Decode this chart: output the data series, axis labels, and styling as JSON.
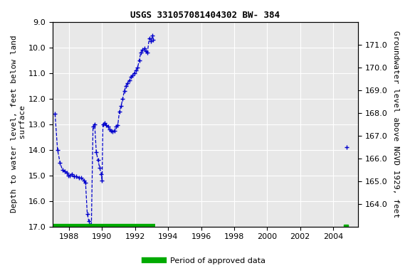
{
  "title": "USGS 331057081404302 BW- 384",
  "ylabel_left": "Depth to water level, feet below land\n surface",
  "ylabel_right": "Groundwater level above NGVD 1929, feet",
  "ylim_left": [
    9.0,
    17.0
  ],
  "ylim_right": [
    171.0,
    163.0
  ],
  "yticks_left": [
    9.0,
    10.0,
    11.0,
    12.0,
    13.0,
    14.0,
    15.0,
    16.0,
    17.0
  ],
  "yticks_right": [
    171.0,
    170.0,
    169.0,
    168.0,
    167.0,
    166.0,
    165.0,
    164.0
  ],
  "ytick_right_labels": [
    "171.0",
    "170.0",
    "169.0",
    "168.0",
    "167.0",
    "166.0",
    "165.0",
    "164.0"
  ],
  "xlim": [
    1987.0,
    2005.5
  ],
  "xticks": [
    1988,
    1990,
    1992,
    1994,
    1996,
    1998,
    2000,
    2002,
    2004
  ],
  "line_color": "#0000CC",
  "marker": "+",
  "marker_size": 5,
  "line_style": "--",
  "line_width": 0.9,
  "approved_color": "#00AA00",
  "background_color": "#e8e8e8",
  "grid_color": "#ffffff",
  "title_fontsize": 9,
  "axis_label_fontsize": 8,
  "tick_fontsize": 8,
  "main_data": [
    [
      1987.15,
      12.6
    ],
    [
      1987.3,
      14.0
    ],
    [
      1987.45,
      14.5
    ],
    [
      1987.6,
      14.8
    ],
    [
      1987.75,
      14.85
    ],
    [
      1987.85,
      14.9
    ],
    [
      1987.95,
      15.0
    ],
    [
      1988.05,
      15.0
    ],
    [
      1988.15,
      14.95
    ],
    [
      1988.3,
      15.05
    ],
    [
      1988.45,
      15.05
    ],
    [
      1988.6,
      15.1
    ],
    [
      1988.75,
      15.1
    ],
    [
      1988.9,
      15.2
    ],
    [
      1989.0,
      15.3
    ],
    [
      1989.1,
      16.5
    ],
    [
      1989.2,
      16.8
    ],
    [
      1989.3,
      16.95
    ],
    [
      1989.35,
      17.0
    ],
    [
      1989.45,
      13.1
    ],
    [
      1989.55,
      13.0
    ],
    [
      1989.65,
      14.1
    ],
    [
      1989.75,
      14.4
    ],
    [
      1989.85,
      14.7
    ],
    [
      1989.95,
      14.95
    ],
    [
      1990.0,
      15.2
    ],
    [
      1990.05,
      13.0
    ],
    [
      1990.15,
      12.95
    ],
    [
      1990.25,
      13.05
    ],
    [
      1990.35,
      13.1
    ],
    [
      1990.45,
      13.2
    ],
    [
      1990.55,
      13.25
    ],
    [
      1990.65,
      13.3
    ],
    [
      1990.75,
      13.25
    ],
    [
      1990.85,
      13.1
    ],
    [
      1990.95,
      13.05
    ],
    [
      1991.05,
      12.5
    ],
    [
      1991.15,
      12.3
    ],
    [
      1991.25,
      12.0
    ],
    [
      1991.35,
      11.7
    ],
    [
      1991.45,
      11.5
    ],
    [
      1991.55,
      11.4
    ],
    [
      1991.65,
      11.3
    ],
    [
      1991.75,
      11.15
    ],
    [
      1991.85,
      11.1
    ],
    [
      1991.95,
      11.0
    ],
    [
      1992.05,
      10.9
    ],
    [
      1992.15,
      10.8
    ],
    [
      1992.25,
      10.5
    ],
    [
      1992.35,
      10.2
    ],
    [
      1992.45,
      10.1
    ],
    [
      1992.55,
      10.05
    ],
    [
      1992.65,
      10.15
    ],
    [
      1992.75,
      10.2
    ],
    [
      1992.85,
      9.65
    ],
    [
      1992.95,
      9.75
    ],
    [
      1993.05,
      9.55
    ],
    [
      1993.1,
      9.7
    ]
  ],
  "isolated_data": [
    [
      2004.8,
      13.9
    ]
  ],
  "approved_periods": [
    [
      1987.0,
      1993.2
    ]
  ],
  "approved_isolated": [
    [
      2004.78,
      17.0
    ]
  ]
}
